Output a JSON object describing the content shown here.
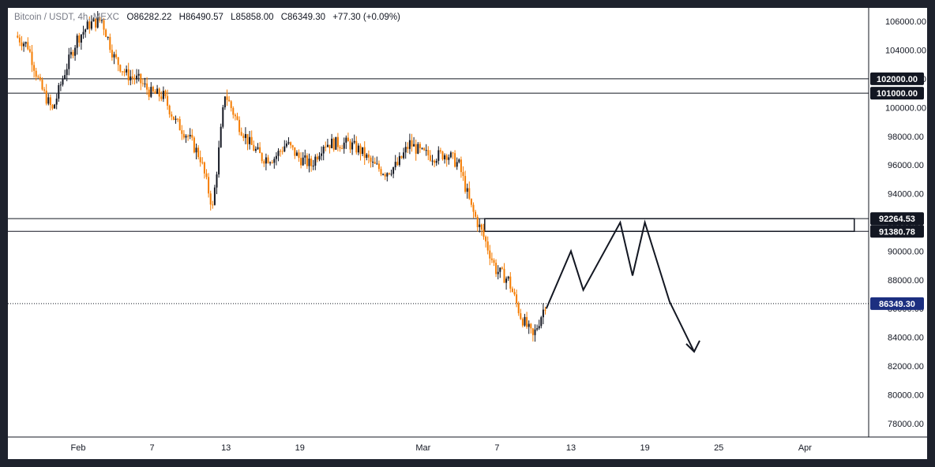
{
  "legend": {
    "symbol": "Bitcoin / USDT, 4h, MEXC",
    "o_label": "O",
    "o_value": "86282.22",
    "h_label": "H",
    "h_value": "86490.57",
    "l_label": "L",
    "l_value": "85858.00",
    "c_label": "C",
    "c_value": "86349.30",
    "change": "+77.30 (+0.09%)"
  },
  "colors": {
    "up": "#131722",
    "down": "#f57c00",
    "price_tag": "#131722",
    "current_tag": "#1c2f80",
    "background": "#ffffff",
    "frame": "#1e222d"
  },
  "chart_data": {
    "type": "candlestick",
    "symbol": "Bitcoin / USDT",
    "interval": "4h",
    "exchange": "MEXC",
    "last_price": 86349.3,
    "ylim": [
      77500,
      106500
    ],
    "y_ticks": [
      78000,
      80000,
      82000,
      84000,
      86000,
      88000,
      90000,
      92000,
      94000,
      96000,
      98000,
      100000,
      102000,
      104000,
      106000
    ],
    "x_ticks": [
      "Feb",
      "7",
      "13",
      "19",
      "Mar",
      "7",
      "13",
      "19",
      "25",
      "Apr"
    ],
    "horizontal_levels": [
      102000.0,
      101000.0,
      92264.53,
      91380.78
    ],
    "level_labels": [
      "102000.00",
      "101000.00",
      "92264.53",
      "91380.78"
    ],
    "current_price_label": "86349.30",
    "price_path": [
      [
        "2025-01-27",
        105000
      ],
      [
        "2025-01-28",
        104300
      ],
      [
        "2025-01-29",
        101500
      ],
      [
        "2025-01-30",
        99800
      ],
      [
        "2025-01-31",
        102500
      ],
      [
        "2025-02-01",
        104800
      ],
      [
        "2025-02-02",
        105800
      ],
      [
        "2025-02-03",
        106100
      ],
      [
        "2025-02-04",
        103500
      ],
      [
        "2025-02-05",
        102300
      ],
      [
        "2025-02-06",
        101900
      ],
      [
        "2025-02-07",
        101000
      ],
      [
        "2025-02-08",
        100800
      ],
      [
        "2025-02-09",
        99000
      ],
      [
        "2025-02-10",
        98000
      ],
      [
        "2025-02-11",
        96500
      ],
      [
        "2025-02-12",
        93000
      ],
      [
        "2025-02-13",
        101000
      ],
      [
        "2025-02-14",
        99000
      ],
      [
        "2025-02-15",
        97500
      ],
      [
        "2025-02-16",
        96500
      ],
      [
        "2025-02-17",
        96500
      ],
      [
        "2025-02-18",
        97500
      ],
      [
        "2025-02-19",
        96500
      ],
      [
        "2025-02-20",
        96000
      ],
      [
        "2025-02-21",
        97500
      ],
      [
        "2025-02-22",
        97500
      ],
      [
        "2025-02-23",
        97500
      ],
      [
        "2025-02-24",
        97000
      ],
      [
        "2025-02-25",
        96000
      ],
      [
        "2025-02-26",
        95500
      ],
      [
        "2025-02-27",
        96000
      ],
      [
        "2025-02-28",
        97500
      ],
      [
        "2025-03-01",
        96800
      ],
      [
        "2025-03-02",
        96600
      ],
      [
        "2025-03-03",
        96800
      ],
      [
        "2025-03-04",
        96000
      ],
      [
        "2025-03-05",
        93000
      ],
      [
        "2025-03-06",
        91000
      ],
      [
        "2025-03-07",
        88700
      ],
      [
        "2025-03-08",
        88000
      ],
      [
        "2025-03-09",
        85500
      ],
      [
        "2025-03-10",
        84000
      ],
      [
        "2025-03-11",
        86300
      ]
    ],
    "rect_zone": {
      "from": "2025-03-06",
      "to": "2025-04-05",
      "top": 92264.53,
      "bottom": 91380.78
    },
    "projection": [
      [
        "2025-03-11",
        86000
      ],
      [
        "2025-03-13",
        90000
      ],
      [
        "2025-03-14",
        87300
      ],
      [
        "2025-03-17",
        92000
      ],
      [
        "2025-03-18",
        88300
      ],
      [
        "2025-03-19",
        92000
      ],
      [
        "2025-03-21",
        86500
      ],
      [
        "2025-03-23",
        83000
      ]
    ]
  }
}
